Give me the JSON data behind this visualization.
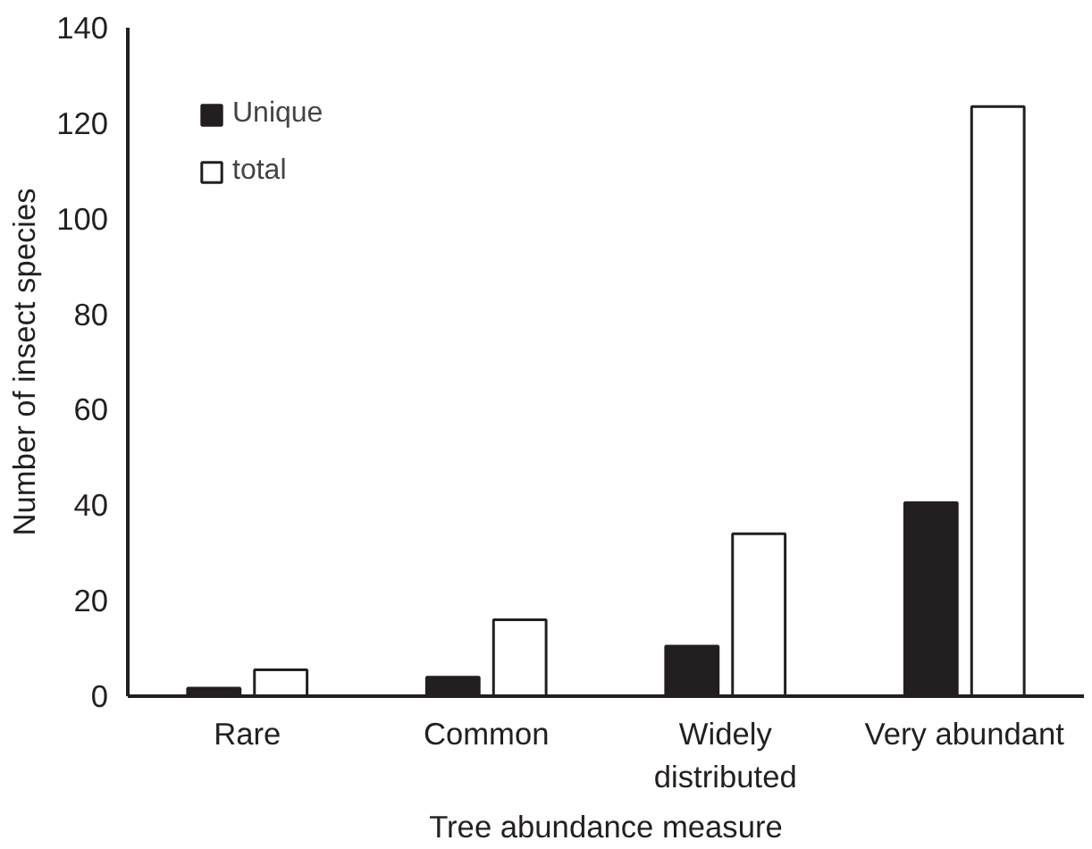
{
  "chart_data": {
    "type": "bar",
    "xlabel": "Tree abundance measure",
    "ylabel": "Number of insect species",
    "categories": [
      "Rare",
      "Common",
      "Widely distributed",
      "Very abundant"
    ],
    "series": [
      {
        "name": "Unique",
        "color": "#231f20",
        "values": [
          1.7,
          4,
          10.5,
          40.5
        ]
      },
      {
        "name": "total",
        "color": "#ffffff",
        "values": [
          5.5,
          16,
          34,
          123.5
        ]
      }
    ],
    "ylim": [
      0,
      140
    ],
    "yticks": [
      0,
      20,
      40,
      60,
      80,
      100,
      120,
      140
    ],
    "grid": false,
    "legend": "top left"
  }
}
